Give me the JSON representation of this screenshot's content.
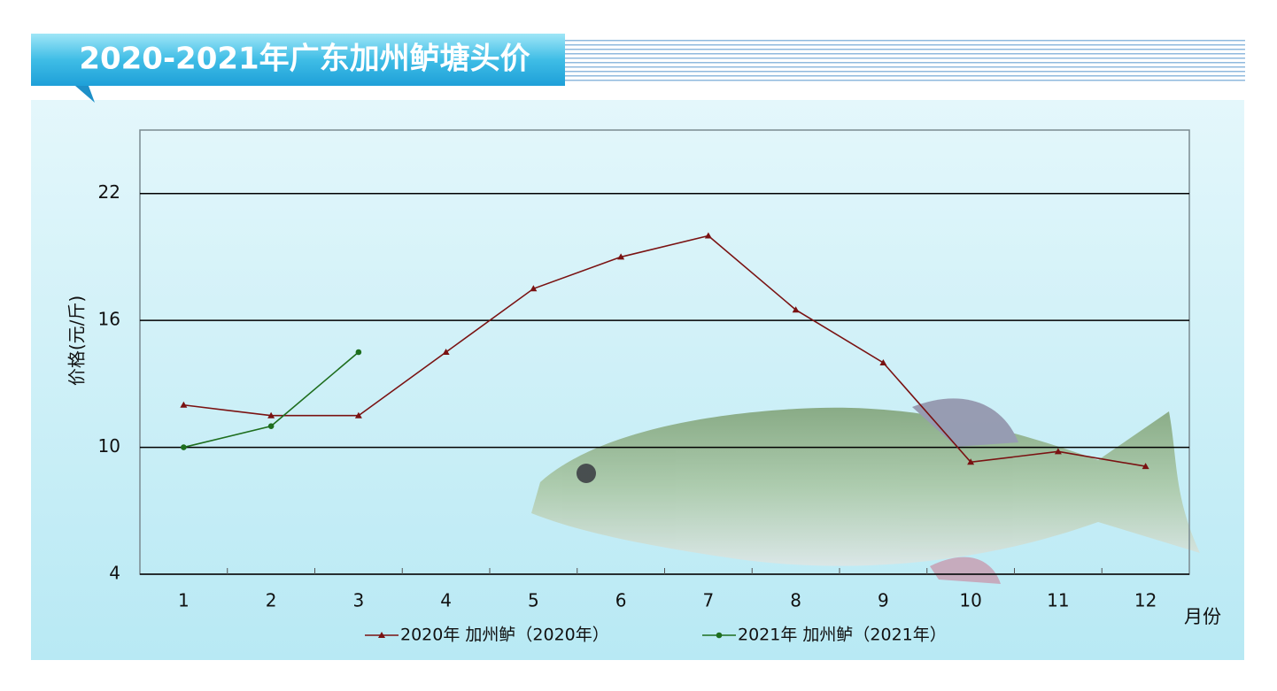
{
  "chart_data": {
    "type": "line",
    "title": "2020-2021年广东加州鲈塘头价",
    "x_label": "月份",
    "y_label": "价格(元/斤)",
    "categories": [
      "1",
      "2",
      "3",
      "4",
      "5",
      "6",
      "7",
      "8",
      "9",
      "10",
      "11",
      "12"
    ],
    "series": [
      {
        "name": "2020年 加州鲈（2020年）",
        "color": "#7a1212",
        "marker": "triangle",
        "values": [
          12,
          11.5,
          11.5,
          14.5,
          17.5,
          19,
          20,
          16.5,
          14,
          9.3,
          9.8,
          9.1
        ]
      },
      {
        "name": "2021年 加州鲈（2021年）",
        "color": "#1e6e1e",
        "marker": "circle",
        "values": [
          10,
          11,
          14.5,
          null,
          null,
          null,
          null,
          null,
          null,
          null,
          null,
          null
        ]
      }
    ],
    "ylim": [
      4,
      25
    ],
    "yticks": [
      4,
      10,
      16,
      22
    ],
    "grid": true
  }
}
